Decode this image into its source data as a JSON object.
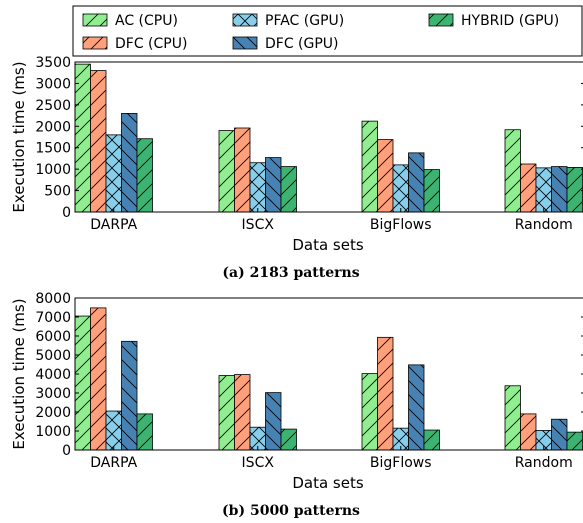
{
  "legend": {
    "items": [
      {
        "label": "AC (CPU)",
        "color": "#90ee90",
        "hatch": "fwd"
      },
      {
        "label": "DFC (CPU)",
        "color": "#ffa07a",
        "hatch": "fwd"
      },
      {
        "label": "PFAC (GPU)",
        "color": "#87ceeb",
        "hatch": "cross"
      },
      {
        "label": "DFC (GPU)",
        "color": "#4682b4",
        "hatch": "back"
      },
      {
        "label": "HYBRID (GPU)",
        "color": "#3cb371",
        "hatch": "fwd"
      }
    ]
  },
  "chart_data": [
    {
      "type": "bar",
      "caption": "(a) 2183 patterns",
      "xlabel": "Data sets",
      "ylabel": "Execution time (ms)",
      "ylim": [
        0,
        3500
      ],
      "yticks": [
        0,
        500,
        1000,
        1500,
        2000,
        2500,
        3000,
        3500
      ],
      "categories": [
        "DARPA",
        "ISCX",
        "BigFlows",
        "Random"
      ],
      "series": [
        {
          "name": "AC (CPU)",
          "values": [
            3450,
            1900,
            2120,
            1920
          ]
        },
        {
          "name": "DFC (CPU)",
          "values": [
            3300,
            1960,
            1690,
            1120
          ]
        },
        {
          "name": "PFAC (GPU)",
          "values": [
            1800,
            1150,
            1100,
            1030
          ]
        },
        {
          "name": "DFC (GPU)",
          "values": [
            2300,
            1270,
            1380,
            1060
          ]
        },
        {
          "name": "HYBRID (GPU)",
          "values": [
            1710,
            1060,
            990,
            1040
          ]
        }
      ]
    },
    {
      "type": "bar",
      "caption": "(b) 5000 patterns",
      "xlabel": "Data sets",
      "ylabel": "Execution time (ms)",
      "ylim": [
        0,
        8000
      ],
      "yticks": [
        0,
        1000,
        2000,
        3000,
        4000,
        5000,
        6000,
        7000,
        8000
      ],
      "categories": [
        "DARPA",
        "ISCX",
        "BigFlows",
        "Random"
      ],
      "series": [
        {
          "name": "AC (CPU)",
          "values": [
            7050,
            3920,
            4020,
            3380
          ]
        },
        {
          "name": "DFC (CPU)",
          "values": [
            7480,
            3970,
            5930,
            1900
          ]
        },
        {
          "name": "PFAC (GPU)",
          "values": [
            2050,
            1200,
            1150,
            1030
          ]
        },
        {
          "name": "DFC (GPU)",
          "values": [
            5720,
            3020,
            4480,
            1620
          ]
        },
        {
          "name": "HYBRID (GPU)",
          "values": [
            1900,
            1100,
            1050,
            940
          ]
        }
      ]
    }
  ]
}
